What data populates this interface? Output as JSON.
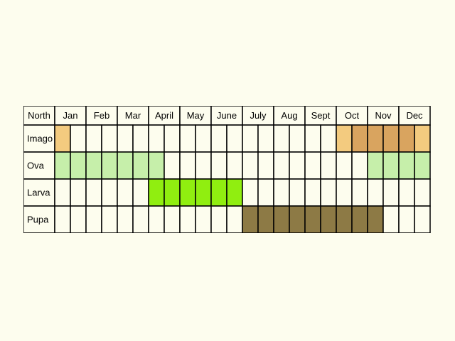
{
  "chart_data": {
    "type": "table",
    "corner_label": "North",
    "corner_color": "#cc0000",
    "months": [
      "Jan",
      "Feb",
      "Mar",
      "April",
      "May",
      "June",
      "July",
      "Aug",
      "Sept",
      "Oct",
      "Nov",
      "Dec"
    ],
    "periods_per_month": 2,
    "background_color": "#fdfdee",
    "stages": [
      {
        "name": "Imago",
        "periods": [
          "#f3cb7f",
          "",
          "",
          "",
          "",
          "",
          "",
          "",
          "",
          "",
          "",
          "",
          "",
          "",
          "",
          "",
          "",
          "",
          "#f3cb7f",
          "#d9a45f",
          "#d9a45f",
          "#d9a45f",
          "#d9a45f",
          "#f3cb7f"
        ]
      },
      {
        "name": "Ova",
        "periods": [
          "#c6efaa",
          "#c6efaa",
          "#c6efaa",
          "#c6efaa",
          "#c6efaa",
          "#c6efaa",
          "#c6efaa",
          "",
          "",
          "",
          "",
          "",
          "",
          "",
          "",
          "",
          "",
          "",
          "",
          "",
          "#c6efaa",
          "#c6efaa",
          "#c6efaa",
          "#c6efaa"
        ]
      },
      {
        "name": "Larva",
        "periods": [
          "",
          "",
          "",
          "",
          "",
          "",
          "#90ee10",
          "#90ee10",
          "#90ee10",
          "#90ee10",
          "#90ee10",
          "#90ee10",
          "",
          "",
          "",
          "",
          "",
          "",
          "",
          "",
          "",
          "",
          "",
          ""
        ]
      },
      {
        "name": "Pupa",
        "periods": [
          "",
          "",
          "",
          "",
          "",
          "",
          "",
          "",
          "",
          "",
          "",
          "",
          "#8d7a45",
          "#8d7a45",
          "#8d7a45",
          "#8d7a45",
          "#8d7a45",
          "#8d7a45",
          "#8d7a45",
          "#8d7a45",
          "#8d7a45",
          "",
          "",
          ""
        ]
      }
    ]
  }
}
